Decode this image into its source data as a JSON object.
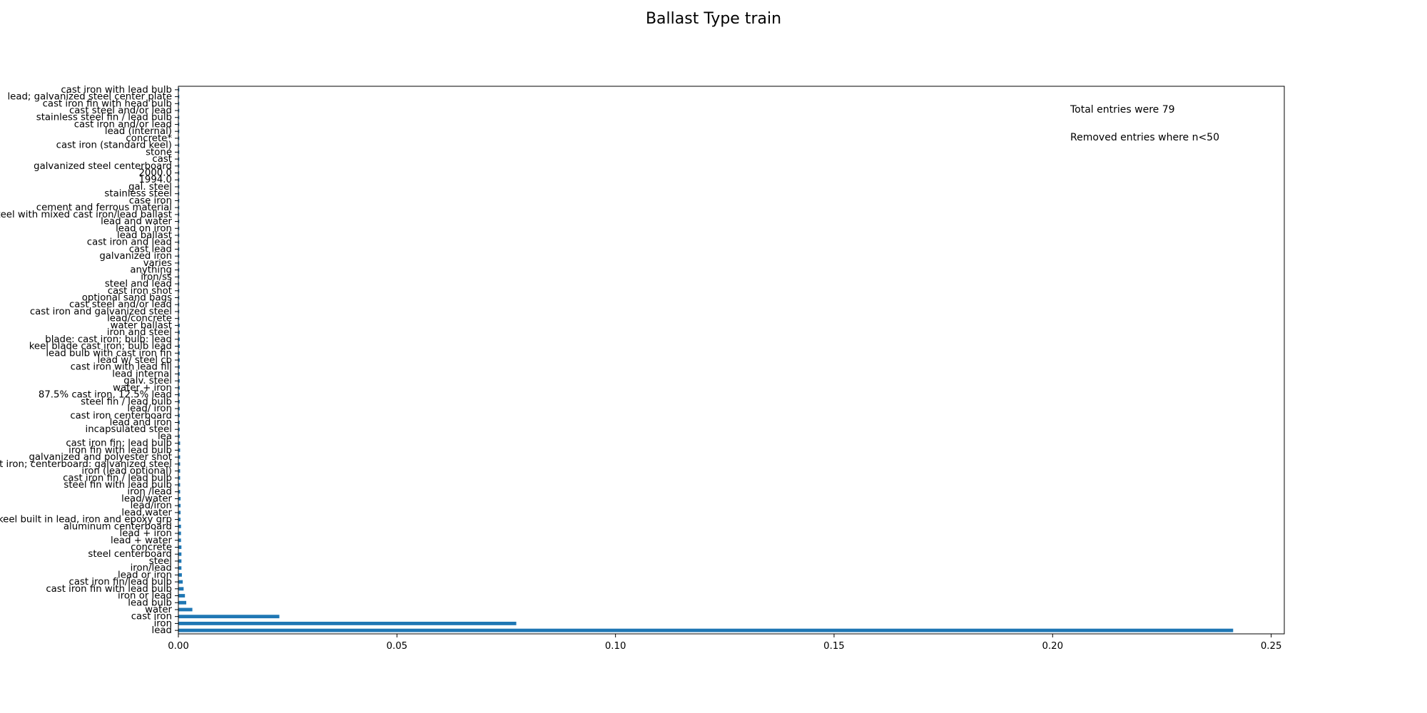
{
  "chart_data": {
    "type": "bar",
    "orientation": "horizontal",
    "title": "Ballast Type train",
    "xlabel": "",
    "ylabel": "",
    "xlim": [
      0,
      0.253
    ],
    "x_ticks": [
      0.0,
      0.05,
      0.1,
      0.15,
      0.2,
      0.25
    ],
    "x_tick_labels": [
      "0.00",
      "0.05",
      "0.10",
      "0.15",
      "0.20",
      "0.25"
    ],
    "grid": false,
    "bar_color": "#1f77b4",
    "annotations": [
      "Total entries were 79",
      "Removed entries where n<50"
    ],
    "categories": [
      "lead",
      "iron",
      "cast iron",
      "water",
      "lead bulb",
      "iron or lead",
      "cast iron fin with lead bulb",
      "cast iron fin/lead bulb",
      "lead or iron",
      "iron/lead",
      "steel",
      "steel centerboard",
      "concrete",
      "lead + water",
      "lead + iron",
      "aluminum centerboard",
      "fiberglass keel built in lead, iron and epoxy grp",
      "lead,water",
      "lead/iron",
      "lead/water",
      "iron /lead",
      "steel fin with lead bulb",
      "cast iron fin / lead bulb",
      "iron (lead optional)",
      "keel: cast iron; centerboard: galvanized steel",
      "galvanized and polyester shot",
      "iron fin with lead bulb",
      "cast iron fin; lead bulb",
      "lea",
      "incapsulated steel",
      "lead and iron",
      "cast iron centerboard",
      "lead/ iron",
      "steel fin / lead bulb",
      "87.5% cast iron, 12.5% lead",
      "water + iron",
      "galv. steel",
      "lead internal",
      "cast iron with lead fill",
      "lead w/ steel cb",
      "lead bulb with cast iron fin",
      "keel blade cast iron; bulb lead",
      "blade: cast iron; bulb: lead",
      "iron and steel",
      "water ballast",
      "lead/concrete",
      "cast iron and galvanized steel",
      "cast steel and/or lead",
      "optional sand bags",
      "cast iron shot",
      "steel and lead",
      "iron/ss",
      "anything",
      "varies",
      "galvanized iron",
      "cast lead",
      "cast iron and lead",
      "lead ballast",
      "lead on iron",
      "lead and water",
      "steel with mixed cast iron/lead ballast",
      "cement and ferrous material",
      "case iron",
      "stainless steel",
      "gal. steel",
      "1994.0",
      "2000.0",
      "galvanized steel centerboard",
      "cast",
      "stone",
      "cast iron (standard keel)",
      "concrete*",
      "lead (internal)",
      "cast iron and/or lead",
      "stainless steel fin / lead bulb",
      "cast steel and/or lead",
      "cast iron fin with head bulb",
      "lead; galvanized steel center plate",
      "cast iron with lead bulb"
    ],
    "values": [
      0.2413,
      0.0773,
      0.0231,
      0.0032,
      0.0018,
      0.0015,
      0.0012,
      0.001,
      0.0008,
      0.0007,
      0.0007,
      0.0007,
      0.0007,
      0.0006,
      0.0006,
      0.0006,
      0.0005,
      0.0005,
      0.0005,
      0.0005,
      0.0004,
      0.0004,
      0.0004,
      0.0004,
      0.0004,
      0.0004,
      0.0004,
      0.0004,
      0.0003,
      0.0003,
      0.0003,
      0.0003,
      0.0003,
      0.0003,
      0.0003,
      0.0003,
      0.0003,
      0.0003,
      0.0003,
      0.0003,
      0.0003,
      0.0003,
      0.0003,
      0.0003,
      0.0003,
      0.0002,
      0.0002,
      0.0002,
      0.0002,
      0.0002,
      0.0002,
      0.0002,
      0.0002,
      0.0002,
      0.0002,
      0.0002,
      0.0002,
      0.0002,
      0.0002,
      0.0002,
      0.0002,
      0.0002,
      0.0002,
      0.0002,
      0.0002,
      0.0002,
      0.0002,
      0.0002,
      0.0002,
      0.0002,
      0.0002,
      0.0002,
      0.0002,
      0.0002,
      0.0002,
      0.0002,
      0.0002,
      0.0002,
      0.0002
    ]
  }
}
